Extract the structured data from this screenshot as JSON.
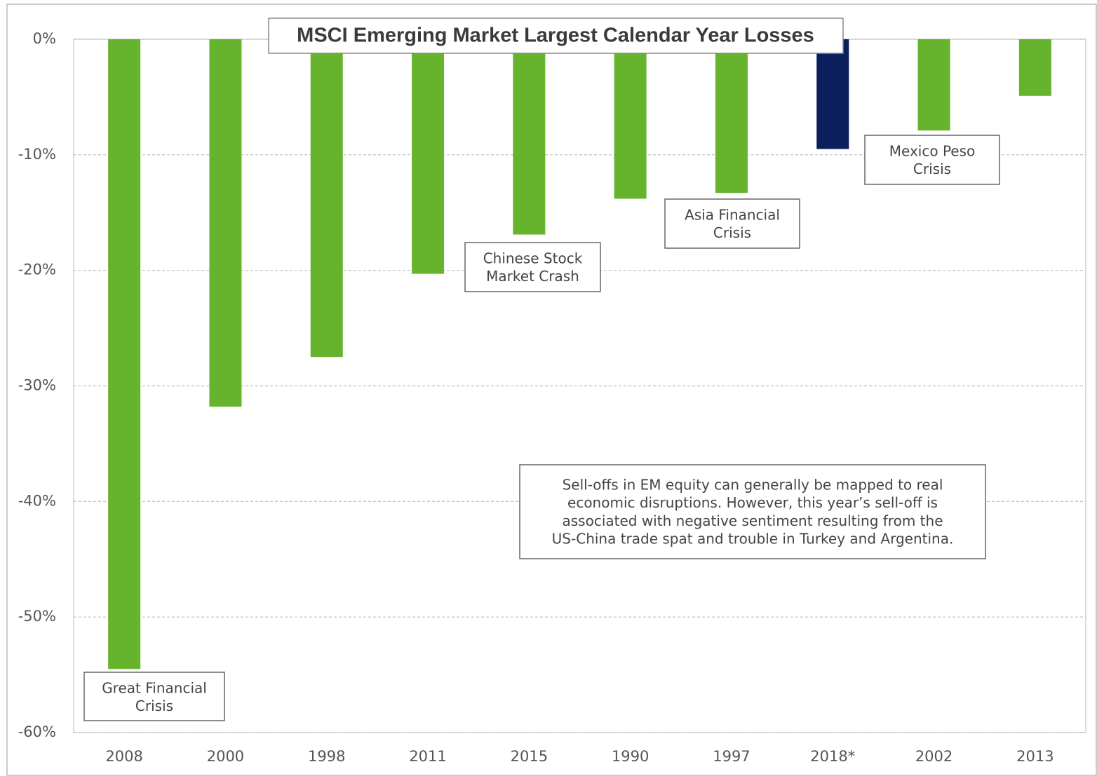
{
  "chart_data": {
    "type": "bar",
    "title": "MSCI Emerging Market Largest Calendar Year Losses",
    "categories": [
      "2008",
      "2000",
      "1998",
      "2011",
      "2015",
      "1990",
      "1997",
      "2018*",
      "2002",
      "2013"
    ],
    "values": [
      -54.5,
      -31.8,
      -27.5,
      -20.3,
      -16.9,
      -13.8,
      -13.3,
      -9.5,
      -7.9,
      -4.9
    ],
    "colors": [
      "#66b32e",
      "#66b32e",
      "#66b32e",
      "#66b32e",
      "#66b32e",
      "#66b32e",
      "#66b32e",
      "#0a1f5c",
      "#66b32e",
      "#66b32e"
    ],
    "ylim": [
      -60,
      0
    ],
    "yticks": [
      {
        "value": 0,
        "label": "0%"
      },
      {
        "value": -10,
        "label": "-10%"
      },
      {
        "value": -20,
        "label": "-20%"
      },
      {
        "value": -30,
        "label": "-30%"
      },
      {
        "value": -40,
        "label": "-40%"
      },
      {
        "value": -50,
        "label": "-50%"
      },
      {
        "value": -60,
        "label": "-60%"
      }
    ],
    "grid": true,
    "annotations": [
      [
        "Great Financial",
        "Crisis"
      ],
      [
        "Chinese Stock",
        "Market Crash"
      ],
      [
        "Asia Financial",
        "Crisis"
      ],
      [
        "Mexico Peso",
        "Crisis"
      ],
      [
        "Sell-offs in EM equity can generally be mapped to real",
        "economic disruptions. However, this year’s sell-off is",
        "associated with negative sentiment resulting from the",
        "US-China trade spat and trouble in Turkey and Argentina."
      ]
    ]
  }
}
